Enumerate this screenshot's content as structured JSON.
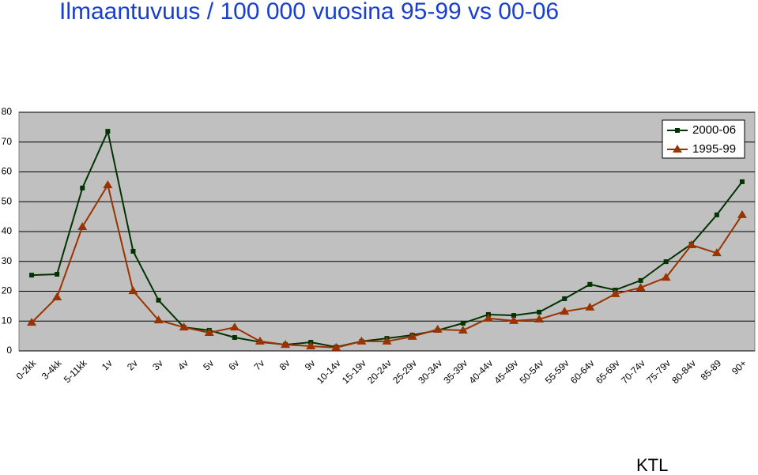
{
  "chart_data": {
    "type": "line",
    "title": "Ilmaantuvuus / 100 000 vuosina 95-99 vs 00-06",
    "annotation": "KTL",
    "categories": [
      "0-2kk",
      "3-4kk",
      "5-11kk",
      "1v",
      "2v",
      "3v",
      "4v",
      "5v",
      "6v",
      "7v",
      "8v",
      "9v",
      "10-14v",
      "15-19v",
      "20-24v",
      "25-29v",
      "30-34v",
      "35-39v",
      "40-44v",
      "45-49v",
      "50-54v",
      "55-59v",
      "60-64v",
      "65-69v",
      "70-74v",
      "75-79v",
      "80-84v",
      "85-89",
      "90+"
    ],
    "series": [
      {
        "name": "2000-06",
        "color": "#003300",
        "marker": "square",
        "values": [
          25.4,
          25.7,
          54.6,
          73.6,
          33.4,
          17,
          7.9,
          6.9,
          4.5,
          3,
          2.1,
          2.9,
          1.3,
          3.2,
          4.2,
          5.3,
          6.9,
          9.3,
          12.2,
          11.9,
          13,
          17.5,
          22.3,
          20.4,
          23.6,
          29.9,
          35.8,
          45.6,
          56.7
        ]
      },
      {
        "name": "1995-99",
        "color": "#993300",
        "marker": "triangle",
        "values": [
          9.5,
          18,
          41.6,
          55.6,
          20.1,
          10.3,
          7.9,
          6.1,
          7.9,
          3.2,
          2.1,
          1.6,
          1.1,
          3.2,
          3.2,
          4.8,
          7.2,
          6.9,
          10.9,
          10.1,
          10.6,
          13.2,
          14.6,
          19.1,
          21.2,
          24.6,
          35.5,
          32.8,
          45.6
        ]
      }
    ],
    "ylim": [
      0,
      80
    ],
    "yticks": [
      0,
      10,
      20,
      30,
      40,
      50,
      60,
      70,
      80
    ],
    "grid": true,
    "legend": "upper right"
  }
}
